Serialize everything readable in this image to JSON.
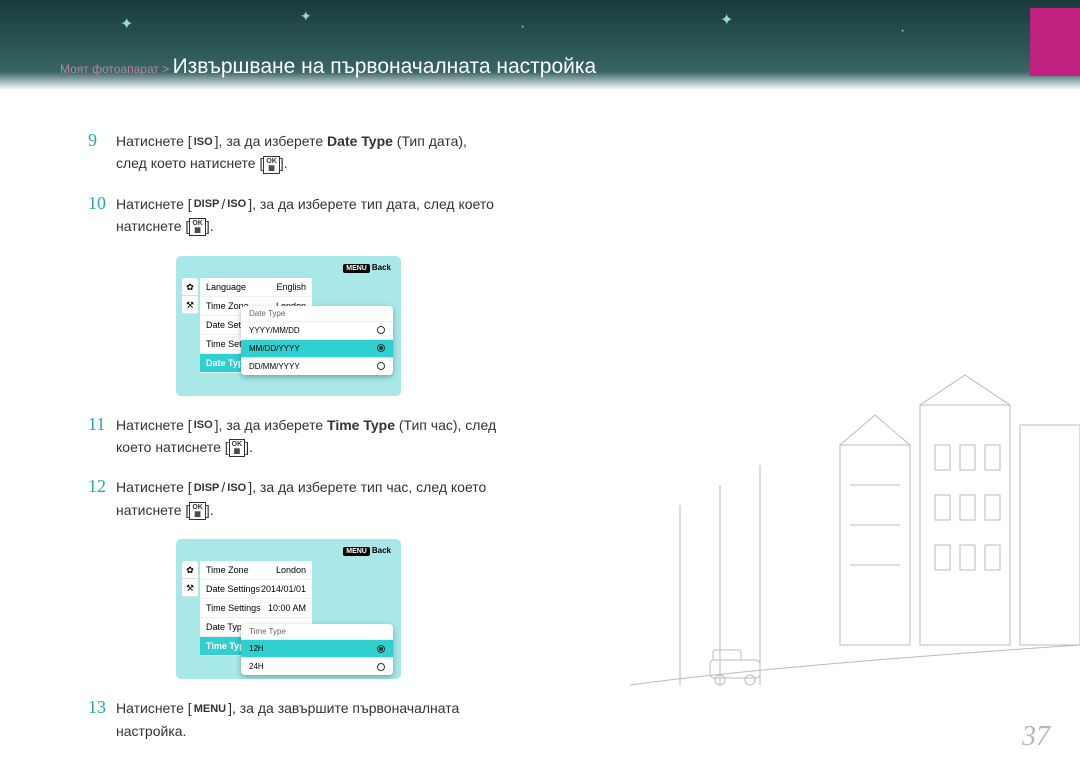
{
  "header": {
    "breadcrumb": "Моят фотоапарат > ",
    "title": "Извършване на първоначалната настройка"
  },
  "steps": [
    {
      "num": "9",
      "parts": [
        {
          "t": "Натиснете ["
        },
        {
          "icon": "ISO"
        },
        {
          "t": "], за да изберете "
        },
        {
          "b": "Date Type"
        },
        {
          "t": " (Тип дата), след което натиснете ["
        },
        {
          "icon": "OK"
        },
        {
          "t": "]."
        }
      ]
    },
    {
      "num": "10",
      "parts": [
        {
          "t": "Натиснете ["
        },
        {
          "icon": "DISP"
        },
        {
          "t": "/"
        },
        {
          "icon": "ISO"
        },
        {
          "t": "], за да изберете тип дата, след което натиснете ["
        },
        {
          "icon": "OK"
        },
        {
          "t": "]."
        }
      ]
    },
    {
      "num": "11",
      "parts": [
        {
          "t": "Натиснете ["
        },
        {
          "icon": "ISO"
        },
        {
          "t": "], за да изберете "
        },
        {
          "b": "Time Type"
        },
        {
          "t": " (Тип час), след което натиснете ["
        },
        {
          "icon": "OK"
        },
        {
          "t": "]."
        }
      ]
    },
    {
      "num": "12",
      "parts": [
        {
          "t": "Натиснете ["
        },
        {
          "icon": "DISP"
        },
        {
          "t": "/"
        },
        {
          "icon": "ISO"
        },
        {
          "t": "], за да изберете тип час, след което натиснете ["
        },
        {
          "icon": "OK"
        },
        {
          "t": "]."
        }
      ]
    },
    {
      "num": "13",
      "parts": [
        {
          "t": "Натиснете ["
        },
        {
          "icon": "MENU"
        },
        {
          "t": "], за да завършите първоначалната настройка."
        }
      ]
    }
  ],
  "screen1": {
    "back": "Back",
    "list": [
      {
        "label": "Language",
        "value": "English"
      },
      {
        "label": "Time Zone",
        "value": "London"
      },
      {
        "label": "Date Setti",
        "value": ""
      },
      {
        "label": "Time Setti",
        "value": ""
      },
      {
        "label": "Date Type",
        "value": "",
        "highlight": true
      }
    ],
    "popup": {
      "title": "Date Type",
      "rows": [
        {
          "label": "YYYY/MM/DD",
          "sel": false
        },
        {
          "label": "MM/DD/YYYY",
          "sel": true
        },
        {
          "label": "DD/MM/YYYY",
          "sel": false
        }
      ]
    }
  },
  "screen2": {
    "back": "Back",
    "list": [
      {
        "label": "Time Zone",
        "value": "London"
      },
      {
        "label": "Date Settings",
        "value": "2014/01/01"
      },
      {
        "label": "Time Settings",
        "value": "10:00 AM"
      },
      {
        "label": "Date Type",
        "value": ""
      },
      {
        "label": "Time Type",
        "value": "",
        "highlight": true
      }
    ],
    "popup": {
      "title": "Time Type",
      "rows": [
        {
          "label": "12H",
          "sel": true
        },
        {
          "label": "24H",
          "sel": false
        }
      ]
    }
  },
  "pageNum": "37",
  "colors": {
    "accent": "#c02080",
    "teal": "#2aa8a8",
    "screen_bg": "#a8e8e8",
    "highlight": "#30d0d0"
  }
}
